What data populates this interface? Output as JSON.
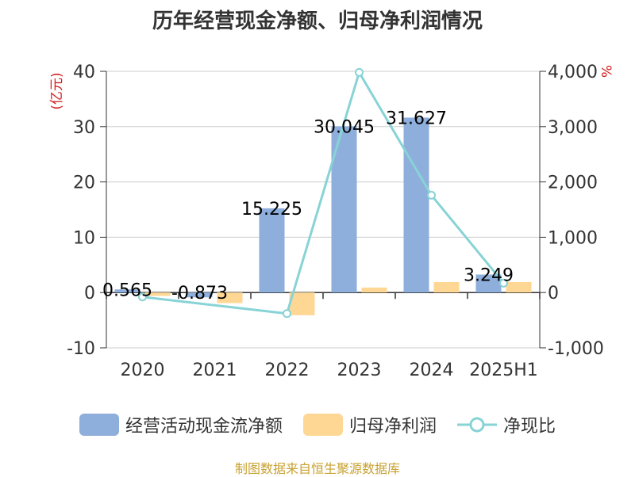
{
  "title": "历年经营现金净额、归母净利润情况",
  "source_text": "制图数据来自恒生聚源数据库",
  "colors": {
    "cashflow": "#8eaedb",
    "netprofit": "#ffd794",
    "ratio": "#88d3d6",
    "unit_red": "#d11b1b",
    "axis": "#333333",
    "grid": "#cccccc"
  },
  "chart_data": {
    "type": "bar",
    "title": "历年经营现金净额、归母净利润情况",
    "categories": [
      "2020",
      "2021",
      "2022",
      "2023",
      "2024",
      "2025H1"
    ],
    "ylabel": "(亿元)",
    "y2label": "%",
    "ylim": [
      -10,
      40
    ],
    "yticks": [
      -10,
      0,
      10,
      20,
      30,
      40
    ],
    "y2lim": [
      -1000,
      4000
    ],
    "y2ticks": [
      -1000,
      0,
      1000,
      2000,
      3000,
      4000
    ],
    "y2tick_labels": [
      "-1,000",
      "0",
      "1,000",
      "2,000",
      "3,000",
      "4,000"
    ],
    "grid": true,
    "legend_position": "bottom",
    "series": [
      {
        "name": "经营活动现金流净额",
        "type": "bar",
        "axis": "left",
        "values": [
          0.565,
          -0.873,
          15.225,
          30.045,
          31.627,
          3.249
        ],
        "labels": [
          "0.565",
          "-0.873",
          "15.225",
          "30.045",
          "31.627",
          "3.249"
        ]
      },
      {
        "name": "归母净利润",
        "type": "bar",
        "axis": "left",
        "values": [
          -0.6,
          -1.9,
          -4.1,
          0.9,
          1.9,
          1.9
        ]
      },
      {
        "name": "净现比",
        "type": "line",
        "axis": "right",
        "values": [
          -80,
          null,
          -380,
          3980,
          1760,
          170
        ]
      }
    ]
  }
}
